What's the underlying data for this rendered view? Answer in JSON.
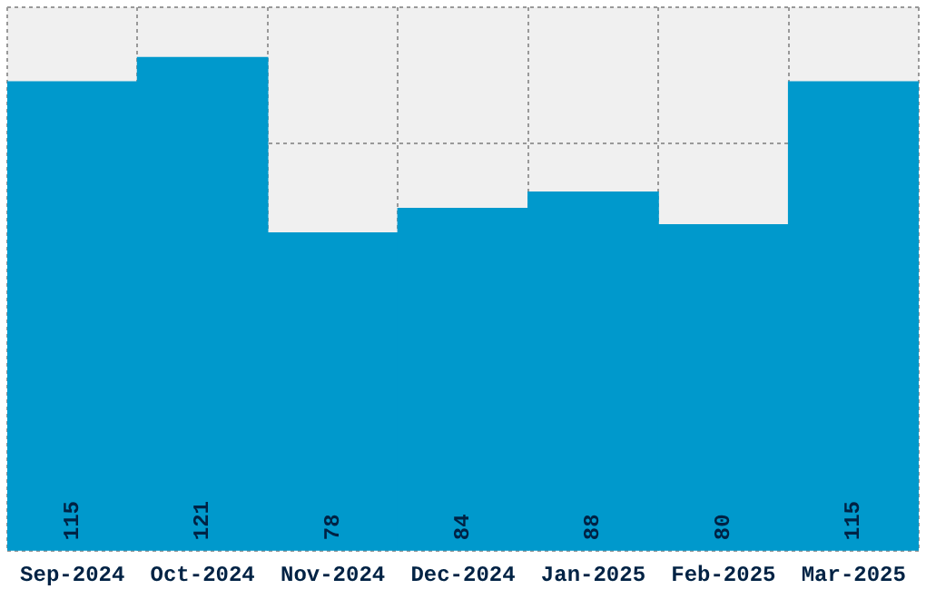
{
  "chart_data": {
    "type": "bar",
    "categories": [
      "Sep-2024",
      "Oct-2024",
      "Nov-2024",
      "Dec-2024",
      "Jan-2025",
      "Feb-2025",
      "Mar-2025"
    ],
    "values": [
      115,
      121,
      78,
      84,
      88,
      80,
      115
    ],
    "color": "#0099cc",
    "data_labels": true,
    "grid": true,
    "tick_labels": "x",
    "ylim": [
      0,
      133.3
    ]
  }
}
